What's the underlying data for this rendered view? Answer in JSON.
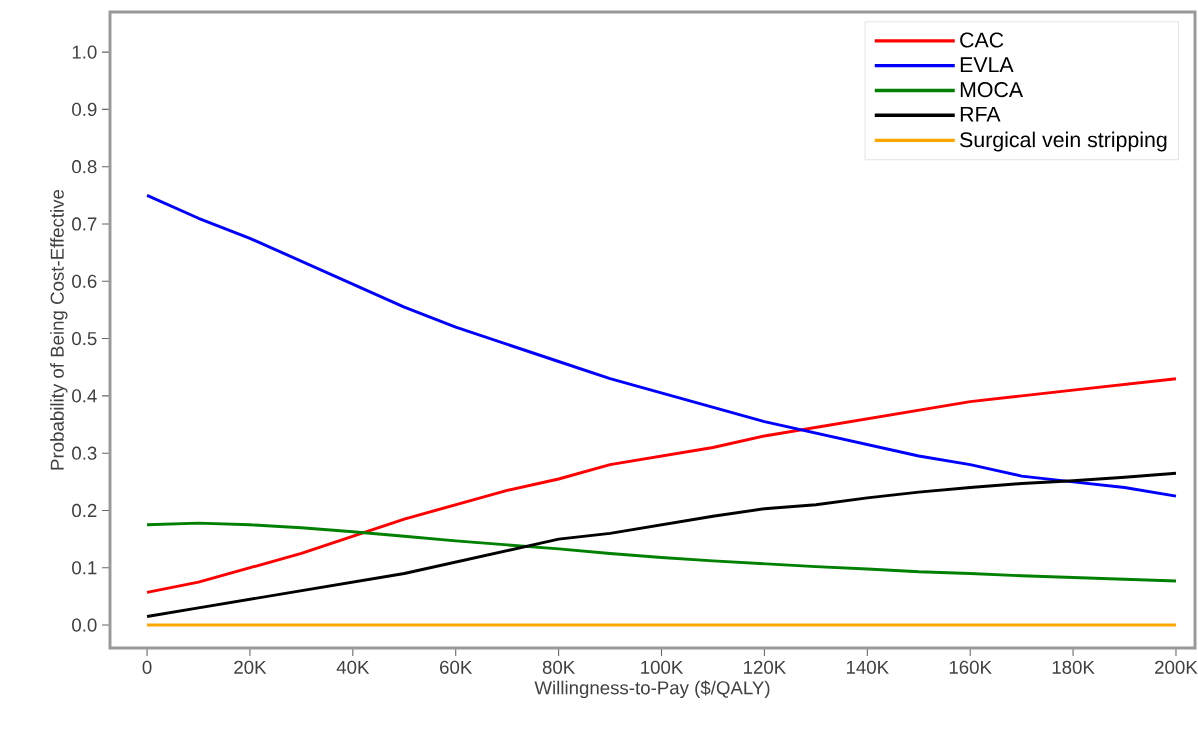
{
  "chart_data": {
    "type": "line",
    "xlabel": "Willingness-to-Pay ($/QALY)",
    "ylabel": "Probability of Being Cost-Effective",
    "x": [
      0,
      10000,
      20000,
      30000,
      40000,
      50000,
      60000,
      70000,
      80000,
      90000,
      100000,
      110000,
      120000,
      130000,
      140000,
      150000,
      160000,
      170000,
      180000,
      190000,
      200000
    ],
    "series": [
      {
        "name": "CAC",
        "color": "#ff0000",
        "values": [
          0.057,
          0.075,
          0.1,
          0.125,
          0.155,
          0.185,
          0.21,
          0.235,
          0.255,
          0.28,
          0.295,
          0.31,
          0.33,
          0.345,
          0.36,
          0.375,
          0.39,
          0.4,
          0.41,
          0.42,
          0.43
        ]
      },
      {
        "name": "EVLA",
        "color": "#0000ff",
        "values": [
          0.75,
          0.71,
          0.675,
          0.635,
          0.595,
          0.555,
          0.52,
          0.49,
          0.46,
          0.43,
          0.405,
          0.38,
          0.355,
          0.335,
          0.315,
          0.295,
          0.28,
          0.26,
          0.25,
          0.24,
          0.225
        ]
      },
      {
        "name": "MOCA",
        "color": "#008000",
        "values": [
          0.175,
          0.178,
          0.175,
          0.17,
          0.163,
          0.155,
          0.147,
          0.14,
          0.133,
          0.125,
          0.118,
          0.112,
          0.107,
          0.102,
          0.098,
          0.093,
          0.09,
          0.086,
          0.083,
          0.08,
          0.077
        ]
      },
      {
        "name": "RFA",
        "color": "#000000",
        "values": [
          0.015,
          0.03,
          0.045,
          0.06,
          0.075,
          0.09,
          0.11,
          0.13,
          0.15,
          0.16,
          0.175,
          0.19,
          0.203,
          0.21,
          0.222,
          0.232,
          0.24,
          0.247,
          0.252,
          0.258,
          0.265
        ]
      },
      {
        "name": "Surgical vein stripping",
        "color": "#ffa500",
        "values": [
          0,
          0,
          0,
          0,
          0,
          0,
          0,
          0,
          0,
          0,
          0,
          0,
          0,
          0,
          0,
          0,
          0,
          0,
          0,
          0,
          0
        ]
      }
    ],
    "xlim": [
      -7200,
      203700
    ],
    "ylim": [
      -0.04,
      1.07
    ],
    "xticks": [
      0,
      {
        "value": 20000,
        "label": "20K"
      },
      {
        "value": 40000,
        "label": "40K"
      },
      {
        "value": 60000,
        "label": "60K"
      },
      {
        "value": 80000,
        "label": "80K"
      },
      {
        "value": 100000,
        "label": "100K"
      },
      {
        "value": 120000,
        "label": "120K"
      },
      {
        "value": 140000,
        "label": "140K"
      },
      {
        "value": 160000,
        "label": "160K"
      },
      {
        "value": 180000,
        "label": "180K"
      },
      {
        "value": 200000,
        "label": "200K"
      }
    ],
    "yticks": [
      {
        "value": 0,
        "label": "0.0"
      },
      0.1,
      0.2,
      0.3,
      0.4,
      0.5,
      0.6,
      0.7,
      0.8,
      0.9,
      {
        "value": 1,
        "label": "1.0"
      }
    ],
    "legend": "top right",
    "grid": false,
    "marker": "none",
    "line_style": "solid"
  }
}
